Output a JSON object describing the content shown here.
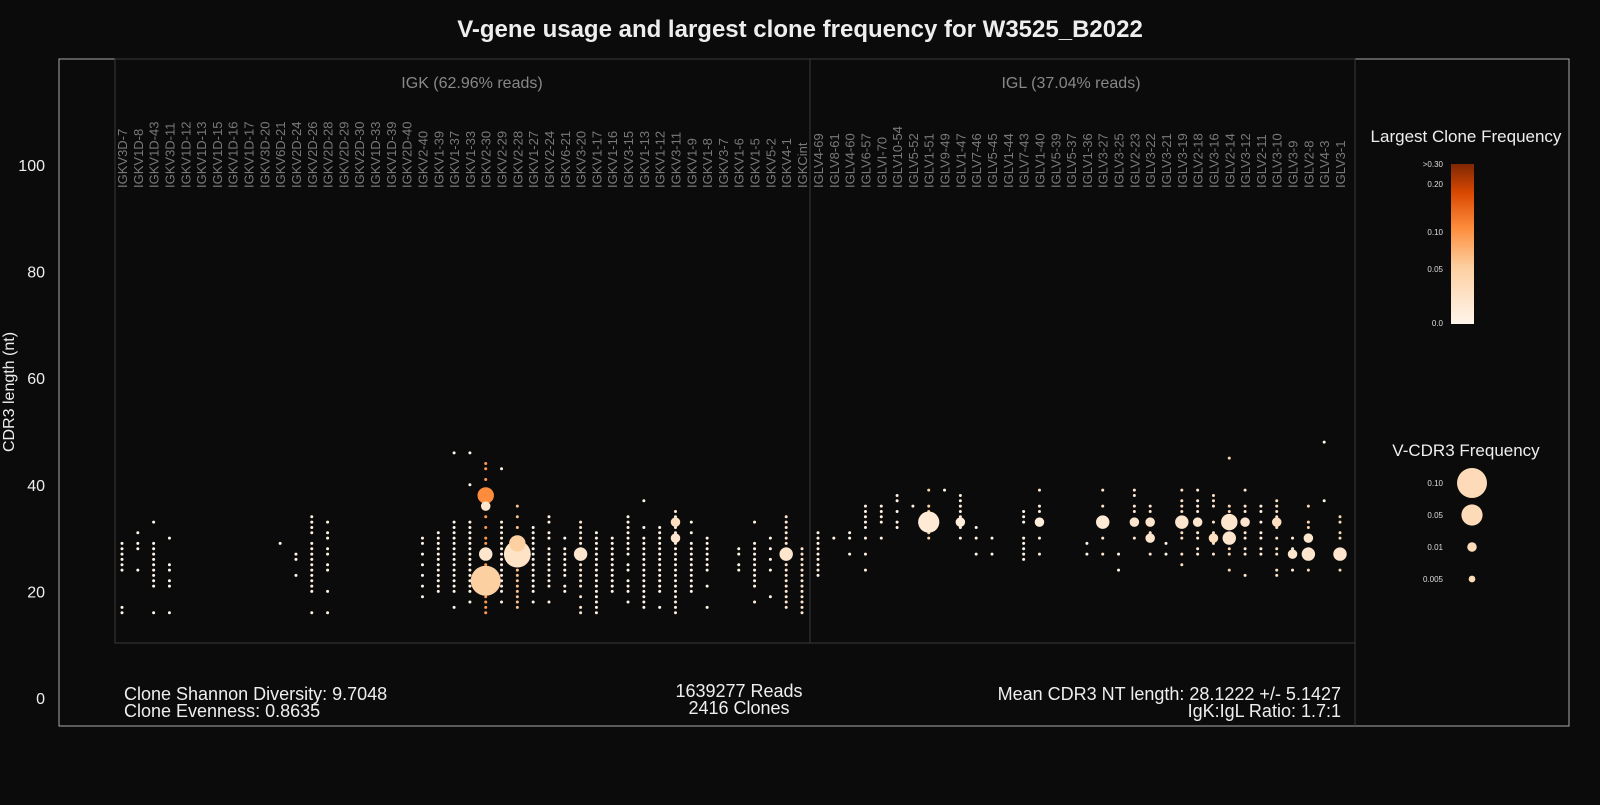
{
  "chart_data": {
    "type": "scatter",
    "title": "V-gene usage and largest clone frequency for W3525_B2022",
    "ylabel": "CDR3 length (nt)",
    "yticks": [
      0,
      20,
      40,
      60,
      80,
      100
    ],
    "ylim": [
      -1,
      116
    ],
    "grid": false,
    "panels": [
      {
        "label": "IGK (62.96% reads)",
        "genes": [
          "IGKV3D-7",
          "IGKV1D-8",
          "IGKV1D-43",
          "IGKV3D-11",
          "IGKV1D-12",
          "IGKV1D-13",
          "IGKV1D-15",
          "IGKV1D-16",
          "IGKV1D-17",
          "IGKV3D-20",
          "IGKV6D-21",
          "IGKV2D-24",
          "IGKV2D-26",
          "IGKV2D-28",
          "IGKV2D-29",
          "IGKV2D-30",
          "IGKV1D-33",
          "IGKV1D-39",
          "IGKV2D-40",
          "IGKV2-40",
          "IGKV1-39",
          "IGKV1-37",
          "IGKV1-33",
          "IGKV2-30",
          "IGKV2-29",
          "IGKV2-28",
          "IGKV1-27",
          "IGKV2-24",
          "IGKV6-21",
          "IGKV3-20",
          "IGKV1-17",
          "IGKV1-16",
          "IGKV3-15",
          "IGKV1-13",
          "IGKV1-12",
          "IGKV3-11",
          "IGKV1-9",
          "IGKV1-8",
          "IGKV3-7",
          "IGKV1-6",
          "IGKV1-5",
          "IGKV5-2",
          "IGKV4-1",
          "IGKCint"
        ]
      },
      {
        "label": "IGL (37.04% reads)",
        "genes": [
          "IGLV4-69",
          "IGLV8-61",
          "IGLV4-60",
          "IGLV6-57",
          "IGLVI-70",
          "IGLV10-54",
          "IGLV5-52",
          "IGLV1-51",
          "IGLV9-49",
          "IGLV1-47",
          "IGLV7-46",
          "IGLV5-45",
          "IGLV1-44",
          "IGLV7-43",
          "IGLV1-40",
          "IGLV5-39",
          "IGLV5-37",
          "IGLV1-36",
          "IGLV3-27",
          "IGLV3-25",
          "IGLV2-23",
          "IGLV3-22",
          "IGLV3-21",
          "IGLV3-19",
          "IGLV2-18",
          "IGLV3-16",
          "IGLV2-14",
          "IGLV3-12",
          "IGLV2-11",
          "IGLV3-10",
          "IGLV3-9",
          "IGLV2-8",
          "IGLV4-3",
          "IGLV3-1"
        ]
      }
    ],
    "points": [
      {
        "gene": "IGKV3D-7",
        "y": [
          29,
          28,
          27,
          26,
          25,
          24,
          17,
          16
        ],
        "f": 0.002
      },
      {
        "gene": "IGKV1D-8",
        "y": [
          31,
          29,
          28,
          24
        ],
        "f": 0.002
      },
      {
        "gene": "IGKV1D-43",
        "y": [
          33,
          29,
          28,
          27,
          26,
          25,
          24,
          23,
          22,
          21,
          16
        ],
        "f": 0.002
      },
      {
        "gene": "IGKV3D-11",
        "y": [
          30,
          25,
          24,
          22,
          21,
          16
        ],
        "f": 0.002
      },
      {
        "gene": "IGKV6D-21",
        "y": [
          29
        ],
        "f": 0.002
      },
      {
        "gene": "IGKV2D-24",
        "y": [
          27,
          26,
          23
        ],
        "f": 0.002
      },
      {
        "gene": "IGKV2D-26",
        "y": [
          34,
          33,
          32,
          31,
          29,
          28,
          27,
          26,
          25,
          24,
          23,
          22,
          21,
          20,
          16
        ],
        "f": 0.006
      },
      {
        "gene": "IGKV2D-28",
        "y": [
          33,
          31,
          30,
          28,
          27,
          25,
          24,
          20,
          16
        ],
        "f": 0.005
      },
      {
        "gene": "IGKV2-40",
        "y": [
          30,
          29,
          27,
          25,
          23,
          21,
          19
        ],
        "f": 0.003
      },
      {
        "gene": "IGKV1-39",
        "y": [
          31,
          30,
          29,
          28,
          27,
          26,
          25,
          24,
          23,
          22,
          21,
          20
        ],
        "f": 0.006
      },
      {
        "gene": "IGKV1-37",
        "y": [
          46,
          33,
          32,
          31,
          30,
          29,
          28,
          27,
          26,
          25,
          24,
          23,
          22,
          21,
          20,
          17
        ],
        "f": 0.002
      },
      {
        "gene": "IGKV1-33",
        "y": [
          46,
          40,
          33,
          32,
          31,
          30,
          29,
          28,
          27,
          26,
          25,
          24,
          23,
          22,
          21,
          20,
          18
        ],
        "f": 0.004
      },
      {
        "gene": "IGKV2-30",
        "y": [
          44,
          43,
          41,
          38,
          36,
          34,
          32,
          30,
          29,
          28,
          27,
          25,
          24,
          23,
          22,
          21,
          20,
          19,
          18,
          17,
          16
        ],
        "f": 0.09
      },
      {
        "gene": "IGKV2-29",
        "y": [
          43,
          33,
          32,
          31,
          30,
          29,
          28,
          27,
          26,
          25,
          24,
          23,
          22,
          21,
          20,
          18
        ],
        "f": 0.01
      },
      {
        "gene": "IGKV2-28",
        "y": [
          36,
          34,
          32,
          30,
          29,
          28,
          27,
          26,
          25,
          24,
          23,
          22,
          21,
          20,
          19,
          18,
          17
        ],
        "f": 0.06
      },
      {
        "gene": "IGKV1-27",
        "y": [
          32,
          31,
          30,
          29,
          28,
          27,
          26,
          25,
          24,
          23,
          22,
          21,
          20,
          18
        ],
        "f": 0.002
      },
      {
        "gene": "IGKV2-24",
        "y": [
          34,
          33,
          31,
          30,
          28,
          27,
          26,
          25,
          24,
          23,
          22,
          21,
          18
        ],
        "f": 0.008
      },
      {
        "gene": "IGKV6-21",
        "y": [
          30,
          28,
          27,
          26,
          25,
          24,
          23,
          21,
          20
        ],
        "f": 0.002
      },
      {
        "gene": "IGKV3-20",
        "y": [
          33,
          32,
          31,
          30,
          29,
          28,
          27,
          26,
          25,
          24,
          23,
          22,
          21,
          19,
          17,
          16
        ],
        "f": 0.02
      },
      {
        "gene": "IGKV1-17",
        "y": [
          31,
          30,
          29,
          28,
          27,
          26,
          25,
          24,
          23,
          22,
          21,
          20,
          19,
          18,
          17,
          16
        ],
        "f": 0.004
      },
      {
        "gene": "IGKV1-16",
        "y": [
          30,
          29,
          28,
          27,
          26,
          25,
          24,
          23,
          22,
          21,
          20
        ],
        "f": 0.003
      },
      {
        "gene": "IGKV3-15",
        "y": [
          34,
          33,
          32,
          31,
          30,
          29,
          28,
          27,
          25,
          24,
          22,
          21,
          20,
          18
        ],
        "f": 0.003
      },
      {
        "gene": "IGKV1-13",
        "y": [
          37,
          32,
          30,
          29,
          28,
          27,
          26,
          25,
          24,
          23,
          22,
          21,
          20,
          19,
          18,
          17
        ],
        "f": 0.002
      },
      {
        "gene": "IGKV1-12",
        "y": [
          32,
          31,
          30,
          29,
          28,
          27,
          26,
          25,
          24,
          23,
          22,
          21,
          20,
          17
        ],
        "f": 0.002
      },
      {
        "gene": "IGKV3-11",
        "y": [
          35,
          34,
          33,
          32,
          31,
          30,
          29,
          28,
          27,
          26,
          25,
          24,
          23,
          22,
          21,
          20,
          19,
          18,
          17,
          16
        ],
        "f": 0.012
      },
      {
        "gene": "IGKV1-9",
        "y": [
          33,
          31,
          29,
          28,
          27,
          26,
          25,
          24,
          23,
          22,
          21,
          20
        ],
        "f": 0.003
      },
      {
        "gene": "IGKV1-8",
        "y": [
          30,
          29,
          28,
          27,
          26,
          25,
          24,
          21,
          17
        ],
        "f": 0.002
      },
      {
        "gene": "IGKV1-6",
        "y": [
          28,
          27,
          25,
          24
        ],
        "f": 0.002
      },
      {
        "gene": "IGKV1-5",
        "y": [
          33,
          29,
          28,
          27,
          26,
          25,
          24,
          23,
          22,
          21,
          18
        ],
        "f": 0.004
      },
      {
        "gene": "IGKV5-2",
        "y": [
          30,
          28,
          26,
          24,
          19
        ],
        "f": 0.002
      },
      {
        "gene": "IGKV4-1",
        "y": [
          34,
          33,
          32,
          31,
          30,
          29,
          28,
          27,
          26,
          25,
          24,
          23,
          22,
          21,
          20,
          19,
          18,
          17
        ],
        "f": 0.02
      },
      {
        "gene": "IGKCint",
        "y": [
          28,
          27,
          26,
          25,
          24,
          23,
          22,
          21,
          20,
          19,
          18,
          17,
          16
        ],
        "f": 0.02
      },
      {
        "gene": "IGLV4-69",
        "y": [
          31,
          30,
          29,
          28,
          27,
          26,
          25,
          24,
          23
        ],
        "f": 0.003
      },
      {
        "gene": "IGLV8-61",
        "y": [
          30
        ],
        "f": 0.005
      },
      {
        "gene": "IGLV4-60",
        "y": [
          31,
          30,
          27
        ],
        "f": 0.002
      },
      {
        "gene": "IGLV6-57",
        "y": [
          36,
          35,
          34,
          33,
          32,
          30,
          27,
          24
        ],
        "f": 0.006
      },
      {
        "gene": "IGLVI-70",
        "y": [
          36,
          35,
          34,
          33,
          30
        ],
        "f": 0.004
      },
      {
        "gene": "IGLV10-54",
        "y": [
          38,
          37,
          35,
          33,
          32
        ],
        "f": 0.004
      },
      {
        "gene": "IGLV5-52",
        "y": [
          36
        ],
        "f": 0.002
      },
      {
        "gene": "IGLV1-51",
        "y": [
          39,
          36,
          35,
          33,
          31,
          30
        ],
        "f": 0.05
      },
      {
        "gene": "IGLV9-49",
        "y": [
          39
        ],
        "f": 0.003
      },
      {
        "gene": "IGLV1-47",
        "y": [
          38,
          37,
          36,
          35,
          34,
          33,
          32,
          30
        ],
        "f": 0.01
      },
      {
        "gene": "IGLV7-46",
        "y": [
          32,
          30,
          27
        ],
        "f": 0.003
      },
      {
        "gene": "IGLV5-45",
        "y": [
          30,
          27
        ],
        "f": 0.005
      },
      {
        "gene": "IGLV7-43",
        "y": [
          35,
          34,
          33,
          30,
          29,
          28,
          27,
          26
        ],
        "f": 0.002
      },
      {
        "gene": "IGLV1-40",
        "y": [
          39,
          36,
          35,
          33,
          30,
          27
        ],
        "f": 0.015
      },
      {
        "gene": "IGLV1-36",
        "y": [
          29,
          27
        ],
        "f": 0.002
      },
      {
        "gene": "IGLV3-27",
        "y": [
          39,
          36,
          33,
          30,
          27
        ],
        "f": 0.025
      },
      {
        "gene": "IGLV3-25",
        "y": [
          27,
          24
        ],
        "f": 0.003
      },
      {
        "gene": "IGLV2-23",
        "y": [
          39,
          38,
          36,
          35,
          33,
          30
        ],
        "f": 0.02
      },
      {
        "gene": "IGLV3-22",
        "y": [
          36,
          35,
          33,
          31,
          30,
          27
        ],
        "f": 0.02
      },
      {
        "gene": "IGLV3-21",
        "y": [
          29,
          27
        ],
        "f": 0.002
      },
      {
        "gene": "IGLV3-19",
        "y": [
          39,
          37,
          36,
          35,
          33,
          31,
          30,
          27,
          25
        ],
        "f": 0.03
      },
      {
        "gene": "IGLV2-18",
        "y": [
          39,
          37,
          36,
          35,
          33,
          31,
          30,
          28,
          27
        ],
        "f": 0.015
      },
      {
        "gene": "IGLV3-16",
        "y": [
          38,
          37,
          36,
          33,
          31,
          30,
          29,
          27
        ],
        "f": 0.025
      },
      {
        "gene": "IGLV2-14",
        "y": [
          45,
          36,
          35,
          33,
          32,
          30,
          28,
          27,
          24
        ],
        "f": 0.04
      },
      {
        "gene": "IGLV3-12",
        "y": [
          39,
          36,
          35,
          33,
          31,
          30,
          28,
          27,
          23
        ],
        "f": 0.02
      },
      {
        "gene": "IGLV2-11",
        "y": [
          36,
          35,
          33,
          31,
          30,
          28,
          27
        ],
        "f": 0.008
      },
      {
        "gene": "IGLV3-10",
        "y": [
          37,
          36,
          35,
          34,
          33,
          32,
          30,
          28,
          27,
          24,
          23
        ],
        "f": 0.03
      },
      {
        "gene": "IGLV3-9",
        "y": [
          30,
          28,
          27,
          24
        ],
        "f": 0.015
      },
      {
        "gene": "IGLV2-8",
        "y": [
          36,
          33,
          32,
          30,
          28,
          27,
          24
        ],
        "f": 0.04
      },
      {
        "gene": "IGLV4-3",
        "y": [
          48,
          37
        ],
        "f": 0.002
      },
      {
        "gene": "IGLV3-1",
        "y": [
          34,
          33,
          31,
          30,
          27,
          24
        ],
        "f": 0.04
      }
    ],
    "highlights": [
      {
        "gene": "IGKV2-30",
        "y": 38,
        "size": 0.03,
        "f": 0.1
      },
      {
        "gene": "IGKV2-30",
        "y": 22,
        "size": 0.1,
        "f": 0.05
      },
      {
        "gene": "IGKV2-28",
        "y": 27,
        "size": 0.08,
        "f": 0.025
      },
      {
        "gene": "IGKV2-28",
        "y": 29,
        "size": 0.03,
        "f": 0.05
      },
      {
        "gene": "IGKV2-30",
        "y": 27,
        "size": 0.02,
        "f": 0.02
      },
      {
        "gene": "IGKV2-30",
        "y": 36,
        "size": 0.01,
        "f": 0.02
      },
      {
        "gene": "IGKV3-20",
        "y": 27,
        "size": 0.02,
        "f": 0.02
      },
      {
        "gene": "IGKV4-1",
        "y": 27,
        "size": 0.02,
        "f": 0.02
      },
      {
        "gene": "IGKV3-11",
        "y": 33,
        "size": 0.01,
        "f": 0.03
      },
      {
        "gene": "IGKV3-11",
        "y": 30,
        "size": 0.01,
        "f": 0.02
      },
      {
        "gene": "IGLV1-51",
        "y": 33,
        "size": 0.05,
        "f": 0.015
      },
      {
        "gene": "IGLV1-47",
        "y": 33,
        "size": 0.01,
        "f": 0.01
      },
      {
        "gene": "IGLV1-40",
        "y": 33,
        "size": 0.01,
        "f": 0.01
      },
      {
        "gene": "IGLV3-27",
        "y": 33,
        "size": 0.02,
        "f": 0.015
      },
      {
        "gene": "IGLV2-23",
        "y": 33,
        "size": 0.01,
        "f": 0.02
      },
      {
        "gene": "IGLV3-22",
        "y": 33,
        "size": 0.01,
        "f": 0.02
      },
      {
        "gene": "IGLV3-22",
        "y": 30,
        "size": 0.01,
        "f": 0.02
      },
      {
        "gene": "IGLV3-19",
        "y": 33,
        "size": 0.02,
        "f": 0.02
      },
      {
        "gene": "IGLV2-18",
        "y": 33,
        "size": 0.01,
        "f": 0.02
      },
      {
        "gene": "IGLV3-16",
        "y": 30,
        "size": 0.01,
        "f": 0.03
      },
      {
        "gene": "IGLV2-14",
        "y": 33,
        "size": 0.03,
        "f": 0.02
      },
      {
        "gene": "IGLV2-14",
        "y": 30,
        "size": 0.02,
        "f": 0.02
      },
      {
        "gene": "IGLV3-12",
        "y": 33,
        "size": 0.01,
        "f": 0.02
      },
      {
        "gene": "IGLV3-10",
        "y": 33,
        "size": 0.01,
        "f": 0.03
      },
      {
        "gene": "IGLV3-9",
        "y": 27,
        "size": 0.01,
        "f": 0.02
      },
      {
        "gene": "IGLV2-8",
        "y": 27,
        "size": 0.02,
        "f": 0.02
      },
      {
        "gene": "IGLV2-8",
        "y": 30,
        "size": 0.01,
        "f": 0.02
      },
      {
        "gene": "IGLV3-1",
        "y": 27,
        "size": 0.02,
        "f": 0.02
      }
    ],
    "color_legend": {
      "title": "Largest Clone Frequency",
      "ticks": [
        ">0.30",
        "0.20",
        "0.10",
        "0.05",
        "0.0"
      ],
      "colormap": [
        "#fff5eb",
        "#fdd0a2",
        "#fd8d3c",
        "#d94801",
        "#7f2704"
      ]
    },
    "size_legend": {
      "title": "V-CDR3 Frequency",
      "entries": [
        {
          "label": "0.10",
          "value": 0.1
        },
        {
          "label": "0.05",
          "value": 0.05
        },
        {
          "label": "0.01",
          "value": 0.01
        },
        {
          "label": "0.005",
          "value": 0.005
        }
      ]
    },
    "annotations": {
      "diversity": "Clone Shannon Diversity: 9.7048",
      "evenness": "Clone Evenness: 0.8635",
      "reads": "1639277 Reads",
      "clones": "2416 Clones",
      "mean_cdr3": "Mean CDR3 NT length: 28.1222 +/- 5.1427",
      "ratio": "IgK:IgL Ratio: 1.7:1"
    }
  }
}
